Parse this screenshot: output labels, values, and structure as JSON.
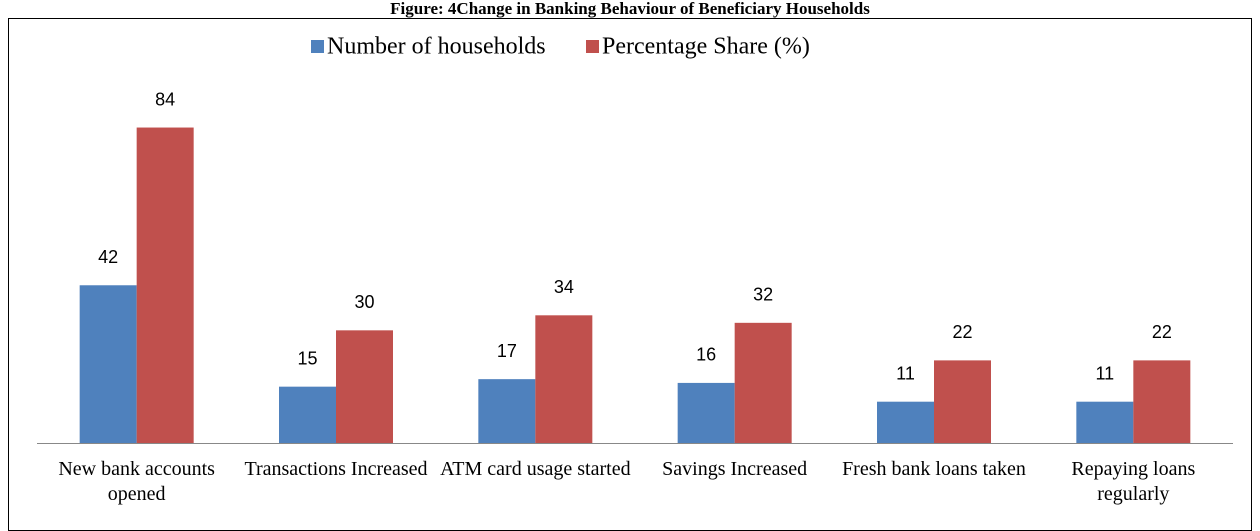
{
  "chart_data": {
    "type": "bar",
    "title": "Figure: 4Change in Banking Behaviour of Beneficiary Households",
    "categories": [
      "New bank accounts opened",
      "Transactions Increased",
      "ATM card usage started",
      "Savings Increased",
      "Fresh bank loans taken",
      "Repaying loans regularly"
    ],
    "series": [
      {
        "name": "Number of households",
        "color": "#4f81bd",
        "values": [
          42,
          15,
          17,
          16,
          11,
          11
        ]
      },
      {
        "name": "Percentage Share (%)",
        "color": "#c0504d",
        "values": [
          84,
          30,
          34,
          32,
          22,
          22
        ]
      }
    ],
    "ylim": [
      0,
      90
    ],
    "legend": "top"
  }
}
